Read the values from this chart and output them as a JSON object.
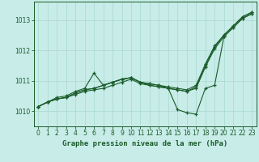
{
  "title": "Graphe pression niveau de la mer (hPa)",
  "background_color": "#c8ece8",
  "grid_color": "#a8d8d0",
  "line_color": "#1a5c2a",
  "xlim": [
    -0.5,
    23.5
  ],
  "ylim": [
    1009.5,
    1013.6
  ],
  "yticks": [
    1010,
    1011,
    1012,
    1013
  ],
  "xticks": [
    0,
    1,
    2,
    3,
    4,
    5,
    6,
    7,
    8,
    9,
    10,
    11,
    12,
    13,
    14,
    15,
    16,
    17,
    18,
    19,
    20,
    21,
    22,
    23
  ],
  "series": [
    [
      1010.15,
      1010.3,
      1010.4,
      1010.45,
      1010.55,
      1010.65,
      1010.7,
      1010.75,
      1010.85,
      1010.95,
      1011.05,
      1010.9,
      1010.85,
      1010.8,
      1010.75,
      1010.7,
      1010.65,
      1010.75,
      1011.45,
      1012.05,
      1012.45,
      1012.75,
      1013.05,
      1013.2
    ],
    [
      1010.15,
      1010.3,
      1010.4,
      1010.45,
      1010.6,
      1010.7,
      1010.75,
      1010.85,
      1010.95,
      1011.05,
      1011.1,
      1010.95,
      1010.9,
      1010.85,
      1010.8,
      1010.75,
      1010.7,
      1010.85,
      1011.55,
      1012.15,
      1012.5,
      1012.8,
      1013.1,
      1013.25
    ],
    [
      1010.15,
      1010.3,
      1010.45,
      1010.5,
      1010.65,
      1010.75,
      1011.25,
      1010.85,
      1010.95,
      1011.05,
      1011.1,
      1010.95,
      1010.9,
      1010.85,
      1010.75,
      1010.7,
      1010.65,
      1010.8,
      1011.5,
      1012.1,
      1012.5,
      1012.8,
      1013.1,
      1013.25
    ],
    [
      1010.15,
      1010.3,
      1010.4,
      1010.45,
      1010.6,
      1010.7,
      1010.75,
      1010.85,
      1010.95,
      1011.05,
      1011.1,
      1010.95,
      1010.85,
      1010.8,
      1010.75,
      1010.05,
      1009.95,
      1009.9,
      1010.75,
      1010.85,
      1012.45,
      1012.75,
      1013.05,
      1013.2
    ]
  ]
}
